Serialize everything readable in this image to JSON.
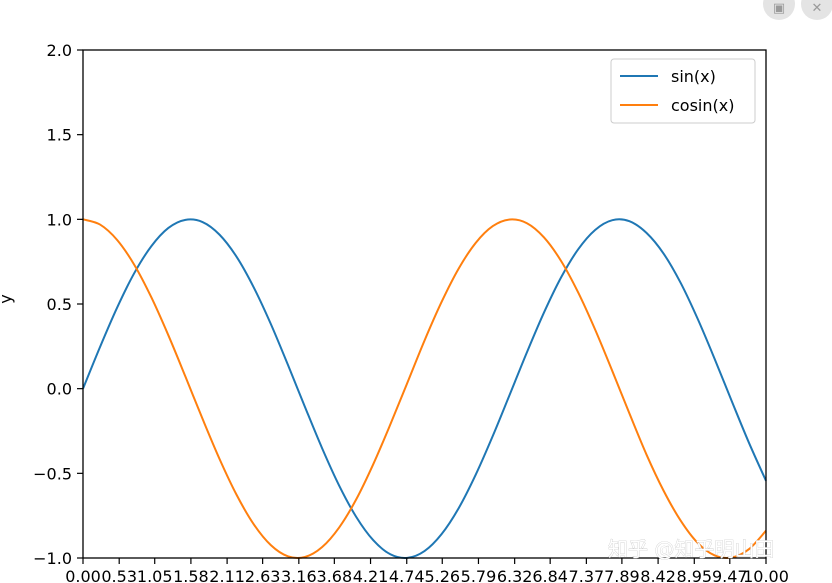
{
  "overlay": {
    "image_icon": "image-icon",
    "close_icon": "close-icon"
  },
  "watermark": "知乎 @知乎明山田",
  "chart_data": {
    "type": "line",
    "xlabel": "",
    "ylabel": "y",
    "xlim": [
      0,
      10
    ],
    "ylim": [
      -1,
      2
    ],
    "grid": false,
    "legend_position": "top-right",
    "x_tick_values": [
      0,
      0.53,
      1.05,
      1.58,
      2.11,
      2.63,
      3.16,
      3.68,
      4.21,
      4.74,
      5.26,
      5.79,
      6.32,
      6.84,
      7.37,
      7.89,
      8.42,
      8.95,
      9.47,
      10.0
    ],
    "x_tick_labels": [
      "0.00",
      "0.53",
      "1.05",
      "1.58",
      "2.11",
      "2.63",
      "3.16",
      "3.68",
      "4.21",
      "4.74",
      "5.26",
      "5.79",
      "6.32",
      "6.84",
      "7.37",
      "7.89",
      "8.42",
      "8.95",
      "9.47",
      "10.00"
    ],
    "y_tick_values": [
      -1.0,
      -0.5,
      0.0,
      0.5,
      1.0,
      1.5,
      2.0
    ],
    "y_tick_labels": [
      "−1.0",
      "−0.5",
      "0.0",
      "0.5",
      "1.0",
      "1.5",
      "2.0"
    ],
    "x": [
      0,
      0.25,
      0.5,
      0.75,
      1.0,
      1.25,
      1.5,
      1.75,
      2.0,
      2.25,
      2.5,
      2.75,
      3.0,
      3.25,
      3.5,
      3.75,
      4.0,
      4.25,
      4.5,
      4.75,
      5.0,
      5.25,
      5.5,
      5.75,
      6.0,
      6.25,
      6.5,
      6.75,
      7.0,
      7.25,
      7.5,
      7.75,
      8.0,
      8.25,
      8.5,
      8.75,
      9.0,
      9.25,
      9.5,
      9.75,
      10.0
    ],
    "series": [
      {
        "name": "sin(x)",
        "color": "#1f77b4",
        "values": [
          0.0,
          0.247,
          0.479,
          0.682,
          0.841,
          0.949,
          0.997,
          0.984,
          0.909,
          0.778,
          0.598,
          0.382,
          0.141,
          -0.108,
          -0.351,
          -0.572,
          -0.757,
          -0.895,
          -0.978,
          -0.999,
          -0.959,
          -0.859,
          -0.706,
          -0.508,
          -0.279,
          -0.033,
          0.215,
          0.45,
          0.657,
          0.823,
          0.938,
          0.995,
          0.989,
          0.92,
          0.798,
          0.625,
          0.412,
          0.174,
          -0.075,
          -0.319,
          -0.544
        ]
      },
      {
        "name": "cosin(x)",
        "color": "#ff7f0e",
        "values": [
          1.0,
          0.969,
          0.878,
          0.732,
          0.54,
          0.315,
          0.071,
          -0.178,
          -0.416,
          -0.628,
          -0.801,
          -0.924,
          -0.99,
          -0.994,
          -0.936,
          -0.82,
          -0.654,
          -0.446,
          -0.211,
          0.036,
          0.284,
          0.512,
          0.709,
          0.861,
          0.96,
          0.999,
          0.977,
          0.893,
          0.754,
          0.568,
          0.347,
          0.104,
          -0.146,
          -0.389,
          -0.602,
          -0.779,
          -0.911,
          -0.985,
          -0.997,
          -0.948,
          -0.839
        ]
      }
    ]
  }
}
